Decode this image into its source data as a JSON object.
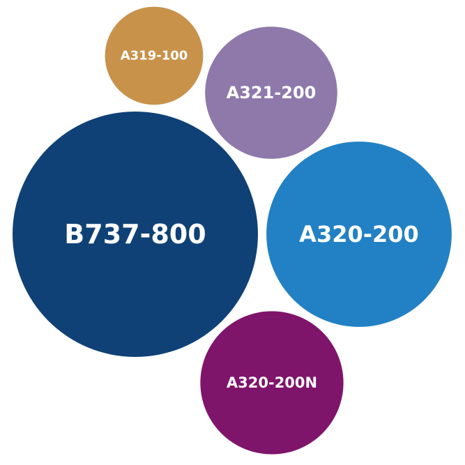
{
  "chart_data": {
    "type": "bubble",
    "title": "",
    "size_unit": "relative (largest = 100)",
    "bubbles": [
      {
        "label": "A319-100",
        "value": 16,
        "color": "#C8924A"
      },
      {
        "label": "A321-200",
        "value": 29,
        "color": "#8E79AA"
      },
      {
        "label": "B737-800",
        "value": 100,
        "color": "#0F4176"
      },
      {
        "label": "A320-200",
        "value": 57,
        "color": "#2281C4"
      },
      {
        "label": "A320-200N",
        "value": 34,
        "color": "#7F146B"
      }
    ]
  }
}
